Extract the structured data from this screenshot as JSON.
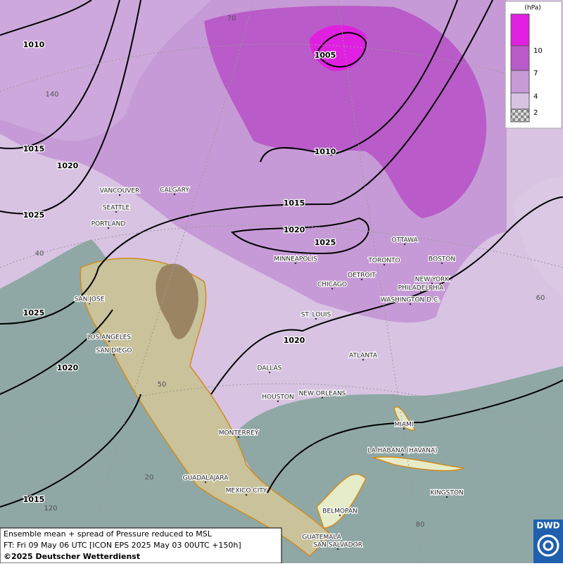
{
  "legend": {
    "unit": "(hPa)",
    "levels": [
      10,
      7,
      4,
      2
    ]
  },
  "isobar_labels": [
    1010,
    1005,
    1015,
    1020,
    1010,
    1025,
    1015,
    1020,
    1025,
    1025,
    1020,
    1020,
    1015
  ],
  "graticule_labels": [
    70,
    140,
    40,
    60,
    50,
    20,
    120,
    80
  ],
  "cities": [
    "VANCOUVER",
    "CALGARY",
    "SEATTLE",
    "PORTLAND",
    "MINNEAPOLIS",
    "OTTAWA",
    "TORONTO",
    "BOSTON",
    "DETROIT",
    "CHICAGO",
    "NEW YORK",
    "PHILADELPHIA",
    "WASHINGTON D.C.",
    "SAN JOSE",
    "ST. LOUIS",
    "LOS ANGELES",
    "SAN DIEGO",
    "ATLANTA",
    "DALLAS",
    "HOUSTON",
    "NEW ORLEANS",
    "MIAMI",
    "MONTERREY",
    "LA HABANA (HAVANA)",
    "GUADALAJARA",
    "MEXICO CITY",
    "KINGSTON",
    "BELMOPAN",
    "GUATEMALA",
    "SAN SALVADOR"
  ],
  "footer": {
    "lines": [
      "Ensemble mean + spread of Pressure reduced to MSL",
      "FT: Fri 09 May 06 UTC [ICON EPS 2025 May 03 00UTC +150h]",
      "©2025 Deutscher Wetterdienst"
    ]
  },
  "logo": "DWD"
}
